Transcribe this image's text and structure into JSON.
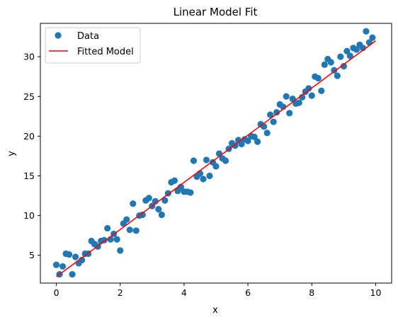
{
  "chart_data": {
    "type": "scatter",
    "title": "Linear Model Fit",
    "xlabel": "x",
    "ylabel": "y",
    "xlim": [
      -0.5,
      10.5
    ],
    "ylim": [
      1.5,
      34.2
    ],
    "xticks": [
      0,
      2,
      4,
      6,
      8,
      10
    ],
    "yticks": [
      5,
      10,
      15,
      20,
      25,
      30
    ],
    "xtick_labels": [
      "0",
      "2",
      "4",
      "6",
      "8",
      "10"
    ],
    "ytick_labels": [
      "5",
      "10",
      "15",
      "20",
      "25",
      "30"
    ],
    "grid": false,
    "legend_position": "upper-left",
    "series": [
      {
        "name": "Data",
        "kind": "scatter",
        "color": "#1f77b4",
        "points": [
          [
            0.0,
            3.8
          ],
          [
            0.1,
            2.6
          ],
          [
            0.2,
            3.6
          ],
          [
            0.3,
            5.2
          ],
          [
            0.4,
            5.1
          ],
          [
            0.5,
            2.6
          ],
          [
            0.6,
            4.8
          ],
          [
            0.7,
            4.0
          ],
          [
            0.8,
            4.4
          ],
          [
            0.9,
            5.2
          ],
          [
            1.0,
            5.2
          ],
          [
            1.1,
            6.8
          ],
          [
            1.2,
            6.4
          ],
          [
            1.3,
            6.1
          ],
          [
            1.4,
            6.8
          ],
          [
            1.5,
            6.9
          ],
          [
            1.6,
            8.4
          ],
          [
            1.7,
            7.0
          ],
          [
            1.8,
            7.7
          ],
          [
            1.9,
            7.0
          ],
          [
            2.0,
            5.6
          ],
          [
            2.1,
            9.0
          ],
          [
            2.2,
            9.5
          ],
          [
            2.3,
            8.2
          ],
          [
            2.4,
            11.5
          ],
          [
            2.5,
            8.1
          ],
          [
            2.6,
            10.0
          ],
          [
            2.7,
            10.1
          ],
          [
            2.8,
            11.9
          ],
          [
            2.9,
            12.2
          ],
          [
            3.0,
            11.2
          ],
          [
            3.1,
            11.8
          ],
          [
            3.2,
            10.8
          ],
          [
            3.3,
            10.1
          ],
          [
            3.4,
            11.9
          ],
          [
            3.5,
            12.8
          ],
          [
            3.6,
            14.2
          ],
          [
            3.7,
            14.4
          ],
          [
            3.8,
            13.1
          ],
          [
            3.9,
            13.6
          ],
          [
            4.0,
            13.0
          ],
          [
            4.1,
            13.0
          ],
          [
            4.2,
            12.9
          ],
          [
            4.3,
            16.9
          ],
          [
            4.4,
            14.9
          ],
          [
            4.5,
            15.3
          ],
          [
            4.6,
            14.6
          ],
          [
            4.7,
            17.0
          ],
          [
            4.8,
            15.0
          ],
          [
            4.9,
            16.7
          ],
          [
            5.0,
            16.2
          ],
          [
            5.1,
            17.8
          ],
          [
            5.2,
            17.2
          ],
          [
            5.3,
            16.9
          ],
          [
            5.4,
            18.4
          ],
          [
            5.5,
            19.1
          ],
          [
            5.6,
            18.8
          ],
          [
            5.7,
            19.5
          ],
          [
            5.8,
            19.0
          ],
          [
            5.9,
            19.6
          ],
          [
            6.0,
            19.4
          ],
          [
            6.1,
            20.0
          ],
          [
            6.2,
            19.9
          ],
          [
            6.3,
            19.3
          ],
          [
            6.4,
            21.5
          ],
          [
            6.5,
            21.2
          ],
          [
            6.6,
            20.4
          ],
          [
            6.7,
            22.7
          ],
          [
            6.8,
            21.8
          ],
          [
            6.9,
            23.0
          ],
          [
            7.0,
            24.0
          ],
          [
            7.1,
            23.7
          ],
          [
            7.2,
            25.0
          ],
          [
            7.3,
            22.9
          ],
          [
            7.4,
            24.7
          ],
          [
            7.5,
            24.1
          ],
          [
            7.6,
            24.2
          ],
          [
            7.7,
            24.9
          ],
          [
            7.8,
            25.6
          ],
          [
            7.9,
            26.0
          ],
          [
            8.0,
            25.1
          ],
          [
            8.1,
            27.5
          ],
          [
            8.2,
            27.3
          ],
          [
            8.3,
            25.7
          ],
          [
            8.4,
            29.0
          ],
          [
            8.5,
            29.7
          ],
          [
            8.6,
            29.3
          ],
          [
            8.7,
            28.3
          ],
          [
            8.8,
            27.6
          ],
          [
            8.9,
            30.0
          ],
          [
            9.0,
            28.8
          ],
          [
            9.1,
            30.7
          ],
          [
            9.2,
            30.1
          ],
          [
            9.3,
            31.1
          ],
          [
            9.4,
            30.9
          ],
          [
            9.5,
            31.5
          ],
          [
            9.6,
            31.1
          ],
          [
            9.7,
            33.2
          ],
          [
            9.8,
            31.8
          ],
          [
            9.9,
            32.4
          ]
        ]
      },
      {
        "name": "Fitted Model",
        "kind": "line",
        "color": "#ff0000",
        "x": [
          0,
          10
        ],
        "y": [
          2.3,
          32.0
        ]
      }
    ]
  }
}
